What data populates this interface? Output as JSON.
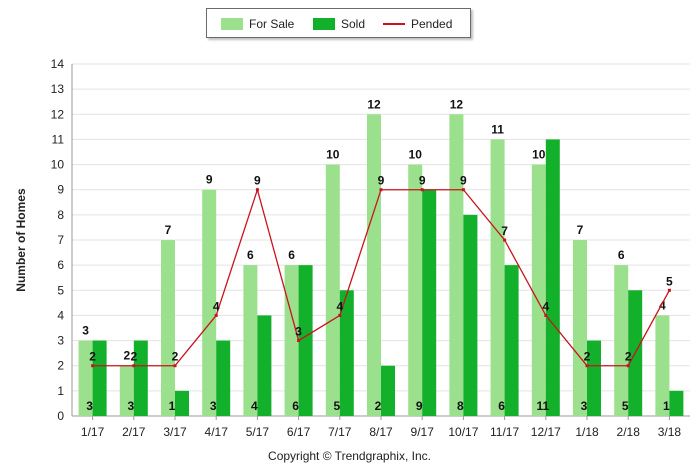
{
  "chart_data": {
    "type": "bar",
    "categories": [
      "1/17",
      "2/17",
      "3/17",
      "4/17",
      "5/17",
      "6/17",
      "7/17",
      "8/17",
      "9/17",
      "10/17",
      "11/17",
      "12/17",
      "1/18",
      "2/18",
      "3/18"
    ],
    "series": [
      {
        "name": "For Sale",
        "type": "bar",
        "color": "#9be08c",
        "values": [
          3,
          2,
          7,
          9,
          6,
          6,
          10,
          12,
          10,
          12,
          11,
          10,
          7,
          6,
          4
        ]
      },
      {
        "name": "Sold",
        "type": "bar",
        "color": "#13b02b",
        "values": [
          3,
          3,
          1,
          3,
          4,
          6,
          5,
          2,
          9,
          8,
          6,
          11,
          3,
          5,
          1
        ]
      },
      {
        "name": "Pended",
        "type": "line",
        "color": "#c8141c",
        "values": [
          2,
          2,
          2,
          4,
          9,
          3,
          4,
          9,
          9,
          9,
          7,
          4,
          2,
          2,
          5
        ]
      }
    ],
    "ylabel": "Number of Homes",
    "ylim": [
      0,
      14
    ],
    "yticks": [
      0,
      1,
      2,
      3,
      4,
      5,
      6,
      7,
      8,
      9,
      10,
      11,
      12,
      13,
      14
    ],
    "grid": true,
    "legend_position": "top-center",
    "copyright": "Copyright © Trendgraphix, Inc."
  }
}
